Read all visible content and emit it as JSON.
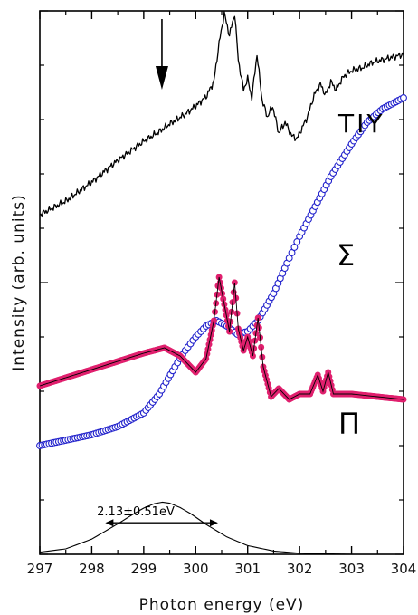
{
  "chart_data": {
    "type": "line",
    "xlabel": "Photon energy (eV)",
    "ylabel": "Intensity (arb. units)",
    "xlim": [
      297,
      304
    ],
    "ylim": [
      0,
      10
    ],
    "x_ticks": [
      297,
      298,
      299,
      300,
      301,
      302,
      303,
      304
    ],
    "y_ticks_shown": false,
    "grid": false,
    "legend": "inline labels",
    "colors": {
      "TIY": "#000000",
      "Sigma": "#2222cc",
      "Pi": "#e0206e",
      "fit": "#000000"
    },
    "series": [
      {
        "name": "TIY",
        "style": "line",
        "x": [
          297.0,
          297.5,
          298.0,
          298.5,
          299.0,
          299.3,
          299.5,
          299.8,
          300.0,
          300.2,
          300.35,
          300.45,
          300.55,
          300.65,
          300.75,
          300.82,
          300.92,
          301.0,
          301.08,
          301.18,
          301.28,
          301.38,
          301.48,
          301.6,
          301.72,
          301.85,
          301.95,
          302.05,
          302.15,
          302.28,
          302.4,
          302.5,
          302.6,
          302.7,
          302.85,
          303.0,
          303.2,
          303.4,
          303.6,
          303.8,
          304.0
        ],
        "y": [
          6.25,
          6.5,
          6.85,
          7.25,
          7.6,
          7.78,
          7.92,
          8.1,
          8.25,
          8.42,
          8.7,
          9.4,
          9.95,
          9.55,
          9.95,
          9.1,
          8.55,
          8.75,
          8.4,
          9.2,
          8.35,
          8.05,
          8.25,
          7.75,
          7.95,
          7.7,
          7.65,
          7.85,
          8.05,
          8.45,
          8.65,
          8.45,
          8.7,
          8.55,
          8.8,
          8.9,
          8.95,
          9.05,
          9.1,
          9.15,
          9.2
        ]
      },
      {
        "name": "Σ",
        "style": "open-circles",
        "x": [
          297.0,
          297.5,
          298.0,
          298.5,
          299.0,
          299.3,
          299.6,
          299.8,
          300.0,
          300.2,
          300.4,
          300.6,
          300.8,
          301.0,
          301.2,
          301.5,
          301.8,
          302.0,
          302.3,
          302.6,
          303.0,
          303.3,
          303.6,
          303.9,
          304.0
        ],
        "y": [
          2.0,
          2.1,
          2.2,
          2.35,
          2.6,
          2.95,
          3.45,
          3.75,
          4.0,
          4.2,
          4.3,
          4.2,
          4.05,
          4.1,
          4.3,
          4.8,
          5.45,
          5.85,
          6.4,
          6.95,
          7.55,
          7.95,
          8.2,
          8.35,
          8.4
        ]
      },
      {
        "name": "Π",
        "style": "filled-circles",
        "x": [
          297.0,
          297.5,
          298.0,
          298.5,
          299.0,
          299.4,
          299.7,
          300.0,
          300.2,
          300.35,
          300.45,
          300.55,
          300.65,
          300.75,
          300.82,
          300.92,
          301.0,
          301.1,
          301.2,
          301.3,
          301.45,
          301.6,
          301.8,
          302.0,
          302.2,
          302.35,
          302.45,
          302.55,
          302.65,
          302.8,
          303.0,
          303.5,
          304.0
        ],
        "y": [
          3.1,
          3.25,
          3.4,
          3.55,
          3.7,
          3.8,
          3.65,
          3.35,
          3.6,
          4.3,
          5.1,
          4.6,
          4.1,
          5.0,
          4.15,
          3.75,
          4.0,
          3.65,
          4.35,
          3.45,
          2.9,
          3.05,
          2.85,
          2.95,
          2.95,
          3.3,
          3.0,
          3.35,
          2.95,
          2.95,
          2.95,
          2.9,
          2.85
        ]
      },
      {
        "name": "",
        "style": "gaussian-line",
        "x": [
          297.0,
          297.5,
          298.0,
          298.5,
          298.8,
          299.0,
          299.2,
          299.36,
          299.5,
          299.7,
          299.9,
          300.2,
          300.6,
          301.0,
          301.5,
          302.0,
          302.5,
          303.0,
          304.0
        ],
        "y": [
          0.04,
          0.1,
          0.28,
          0.56,
          0.74,
          0.85,
          0.93,
          0.96,
          0.94,
          0.86,
          0.75,
          0.55,
          0.32,
          0.16,
          0.06,
          0.02,
          0.01,
          0.0,
          0.0
        ]
      }
    ],
    "annotations": [
      {
        "type": "arrow-down",
        "x": 299.35,
        "y_top": 9.85,
        "y_bottom": 8.55
      },
      {
        "type": "double-arrow",
        "x_start": 298.26,
        "x_end": 300.43,
        "y": 0.58
      },
      {
        "type": "text",
        "text": "2.13±0.51eV",
        "x": 299.35,
        "y": 1.0
      }
    ],
    "labels": {
      "TIY": "TIY",
      "Sigma": "Σ",
      "Pi": "Π",
      "fwhm": "2.13±0.51eV"
    }
  }
}
